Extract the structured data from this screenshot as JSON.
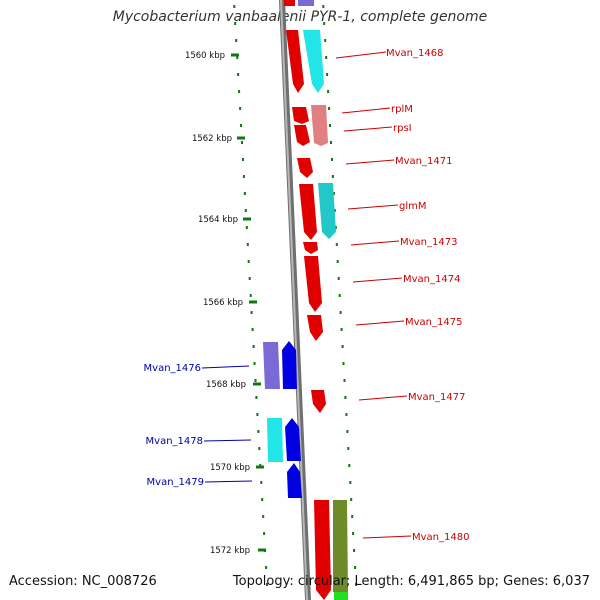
{
  "title": "Mycobacterium vanbaalenii PYR-1, complete genome",
  "accession_text": "Accession: NC_008726",
  "topology_text": "Topology: circular; Length: 6,491,865 bp; Genes: 6,037",
  "colors": {
    "backbone": "#8a8a8a",
    "forward_gene_label": "#cc0000",
    "reverse_gene_label": "#0000aa",
    "tick": "#117711"
  },
  "scale": {
    "unit": "kbp",
    "ticks": [
      "1560 kbp",
      "1562 kbp",
      "1564 kbp",
      "1566 kbp",
      "1568 kbp",
      "1570 kbp",
      "1572 kbp"
    ]
  },
  "genes": [
    {
      "name": "Mvan_1468",
      "strand": "forward"
    },
    {
      "name": "rplM",
      "strand": "forward"
    },
    {
      "name": "rpsI",
      "strand": "forward"
    },
    {
      "name": "Mvan_1471",
      "strand": "forward"
    },
    {
      "name": "glmM",
      "strand": "forward"
    },
    {
      "name": "Mvan_1473",
      "strand": "forward"
    },
    {
      "name": "Mvan_1474",
      "strand": "forward"
    },
    {
      "name": "Mvan_1475",
      "strand": "forward"
    },
    {
      "name": "Mvan_1476",
      "strand": "reverse"
    },
    {
      "name": "Mvan_1477",
      "strand": "forward"
    },
    {
      "name": "Mvan_1478",
      "strand": "reverse"
    },
    {
      "name": "Mvan_1479",
      "strand": "reverse"
    },
    {
      "name": "Mvan_1480",
      "strand": "forward"
    }
  ]
}
